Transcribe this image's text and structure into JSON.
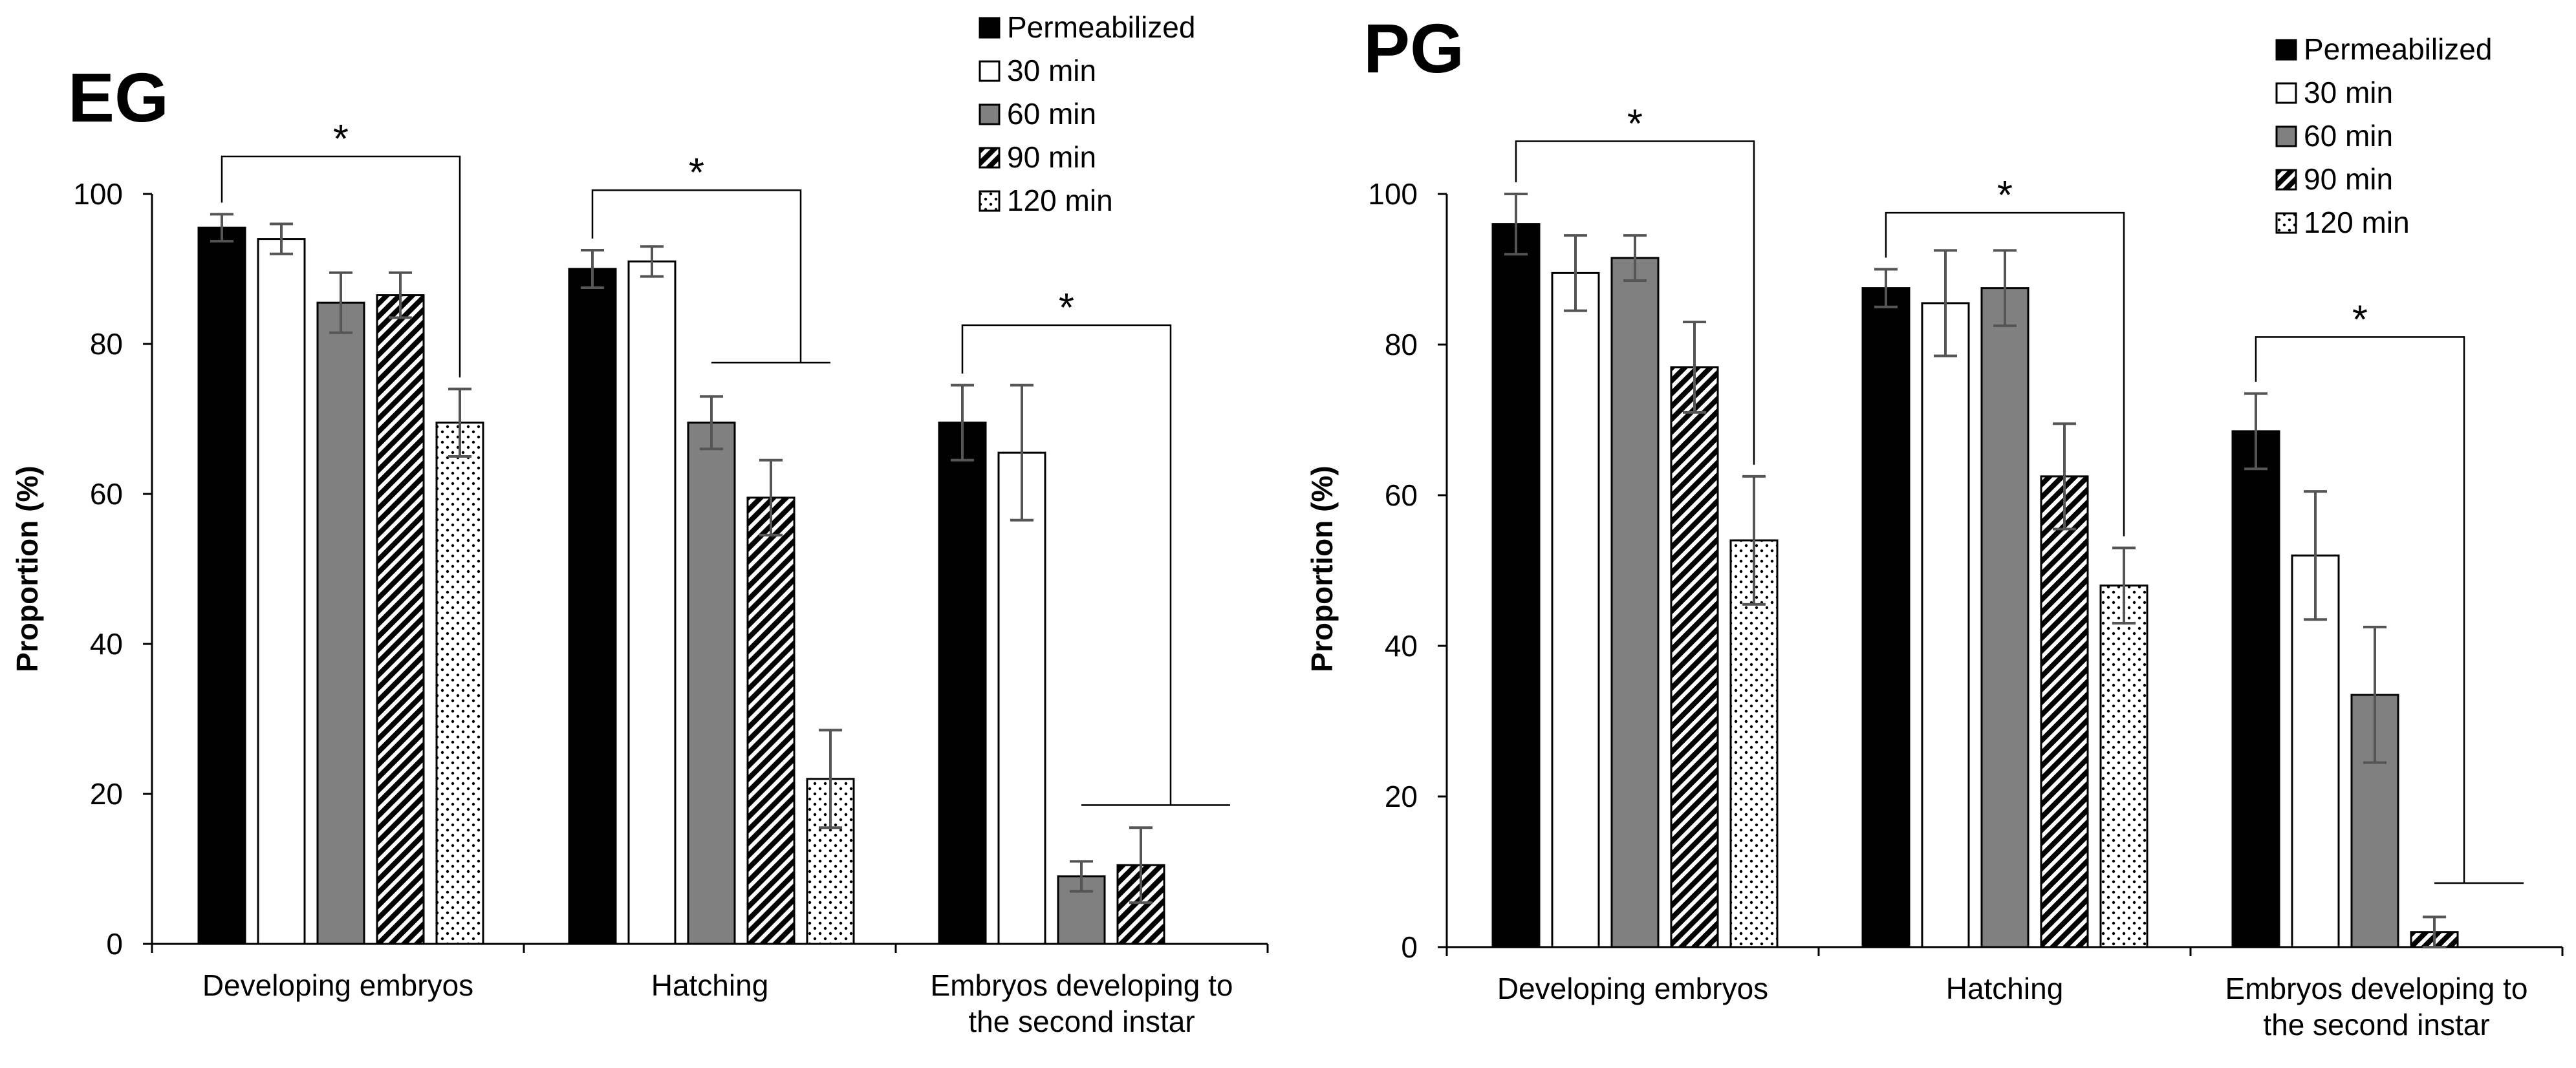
{
  "legend": [
    "Permeabilized",
    "30 min",
    "60 min",
    "90 min",
    "120 min"
  ],
  "colors": {
    "black": "#000000",
    "white": "#ffffff",
    "gray": "#808080",
    "error": "#555555"
  },
  "chart_data": [
    {
      "type": "bar",
      "panel_label": "EG",
      "ylabel": "Proportion (%)",
      "ylim": [
        0,
        100
      ],
      "yticks": [
        "0",
        "20",
        "40",
        "60",
        "80",
        "100"
      ],
      "categories": [
        "Developing embryos",
        "Hatching",
        "Embryos developing to the second instar"
      ],
      "category_lines": [
        [
          "Developing embryos"
        ],
        [
          "Hatching"
        ],
        [
          "Embryos developing to",
          "the second instar"
        ]
      ],
      "series": [
        {
          "name": "Permeabilized",
          "values": [
            95.5,
            90,
            69.5
          ],
          "errors": [
            1.8,
            2.5,
            5
          ]
        },
        {
          "name": "30 min",
          "values": [
            94,
            91,
            65.5
          ],
          "errors": [
            2,
            2,
            9
          ]
        },
        {
          "name": "60 min",
          "values": [
            85.5,
            69.5,
            9
          ],
          "errors": [
            4,
            3.5,
            2
          ]
        },
        {
          "name": "90 min",
          "values": [
            86.5,
            59.5,
            10.5
          ],
          "errors": [
            3,
            5,
            5
          ]
        },
        {
          "name": "120 min",
          "values": [
            69.5,
            22,
            null
          ],
          "errors": [
            4.5,
            6.5,
            null
          ]
        }
      ],
      "significance": [
        {
          "group": 0,
          "label": "*",
          "from_bar": 0,
          "to_bar": 4,
          "top": 105
        },
        {
          "group": 1,
          "label": "*",
          "from_bar": 0,
          "to_bar": 3.5,
          "top": 100.5,
          "right_bracket_bottom": 77.5,
          "hline": [
            2,
            4,
            77.5
          ]
        },
        {
          "group": 2,
          "label": "*",
          "from_bar": 0,
          "to_bar": 3.5,
          "top": 82.5,
          "right_bracket_bottom": 18.5,
          "hline": [
            2,
            4.5,
            18.5
          ]
        }
      ]
    },
    {
      "type": "bar",
      "panel_label": "PG",
      "ylabel": "Proportion (%)",
      "ylim": [
        0,
        100
      ],
      "yticks": [
        "0",
        "20",
        "40",
        "60",
        "80",
        "100"
      ],
      "categories": [
        "Developing embryos",
        "Hatching",
        "Embryos developing to the second instar"
      ],
      "category_lines": [
        [
          "Developing embryos"
        ],
        [
          "Hatching"
        ],
        [
          "Embryos developing to",
          "the second instar"
        ]
      ],
      "series": [
        {
          "name": "Permeabilized",
          "values": [
            96,
            87.5,
            68.5
          ],
          "errors": [
            4,
            2.5,
            5
          ]
        },
        {
          "name": "30 min",
          "values": [
            89.5,
            85.5,
            52
          ],
          "errors": [
            5,
            7,
            8.5
          ]
        },
        {
          "name": "60 min",
          "values": [
            91.5,
            87.5,
            33.5
          ],
          "errors": [
            3,
            5,
            9
          ]
        },
        {
          "name": "90 min",
          "values": [
            77,
            62.5,
            2
          ],
          "errors": [
            6,
            7,
            2
          ]
        },
        {
          "name": "120 min",
          "values": [
            54,
            48,
            null
          ],
          "errors": [
            8.5,
            5,
            null
          ]
        }
      ],
      "significance": [
        {
          "group": 0,
          "label": "*",
          "from_bar": 0,
          "to_bar": 4,
          "top": 107
        },
        {
          "group": 1,
          "label": "*",
          "from_bar": 0,
          "to_bar": 4,
          "top": 97.5
        },
        {
          "group": 2,
          "label": "*",
          "from_bar": 0,
          "to_bar": 3.5,
          "top": 81,
          "right_bracket_bottom": 8.5,
          "hline": [
            3,
            4.5,
            8.5
          ]
        }
      ]
    }
  ]
}
